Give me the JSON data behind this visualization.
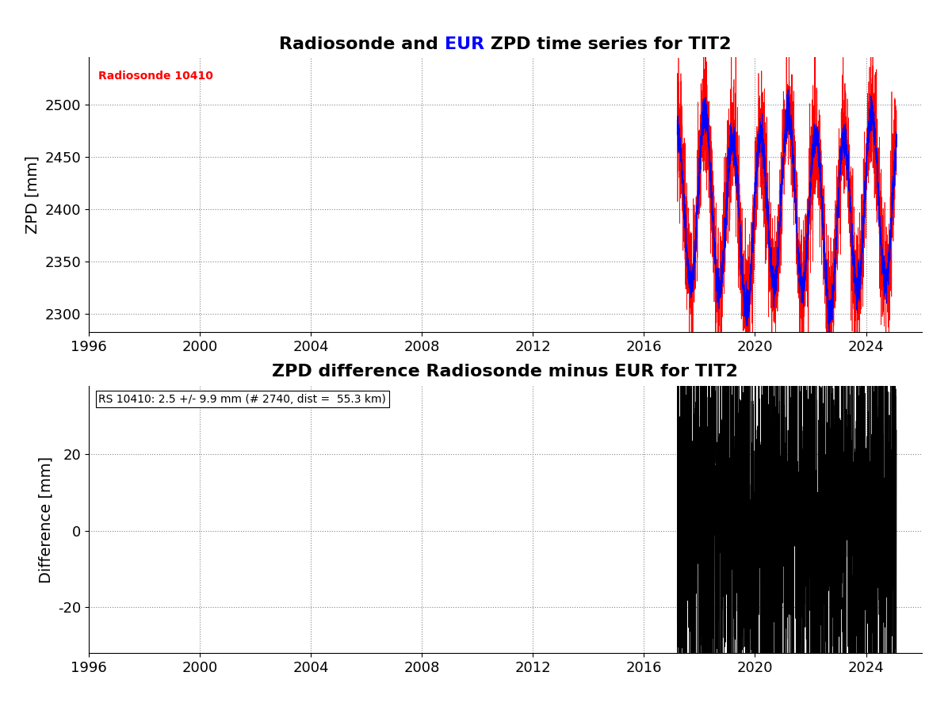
{
  "title1_black": "Radiosonde and ",
  "title1_blue": "EUR",
  "title1_black2": " ZPD time series for TIT2",
  "title2": "ZPD difference Radiosonde minus EUR for TIT2",
  "ylabel1": "ZPD [mm]",
  "ylabel2": "Difference [mm]",
  "annotation1": "Radiosonde 10410",
  "annotation2": "RS 10410: 2.5 +/- 9.9 mm (# 2740, dist =  55.3 km)",
  "xmin": 1996,
  "xmax": 2026,
  "xticks": [
    1996,
    2000,
    2004,
    2008,
    2012,
    2016,
    2020,
    2024
  ],
  "ylim1_lo": 2283,
  "ylim1_hi": 2545,
  "yticks1": [
    2300,
    2350,
    2400,
    2450,
    2500
  ],
  "ylim2_lo": -32,
  "ylim2_hi": 38,
  "yticks2": [
    -20,
    0,
    20
  ],
  "data_start_year": 2017.2,
  "data_end_year": 2025.1,
  "n_points": 2740,
  "zpd_mean": 2400,
  "seasonal_amp": 80,
  "noise_rs_std": 30,
  "noise_eur_std": 8,
  "mean_bias": 2.5,
  "diff_std": 9.9,
  "red_color": "#FF0000",
  "blue_color": "#0000FF",
  "black_color": "#000000",
  "bg_color": "#FFFFFF",
  "grid_color": "#888888",
  "title_fontsize": 16,
  "label_fontsize": 14,
  "tick_fontsize": 13,
  "annot_fontsize": 10
}
